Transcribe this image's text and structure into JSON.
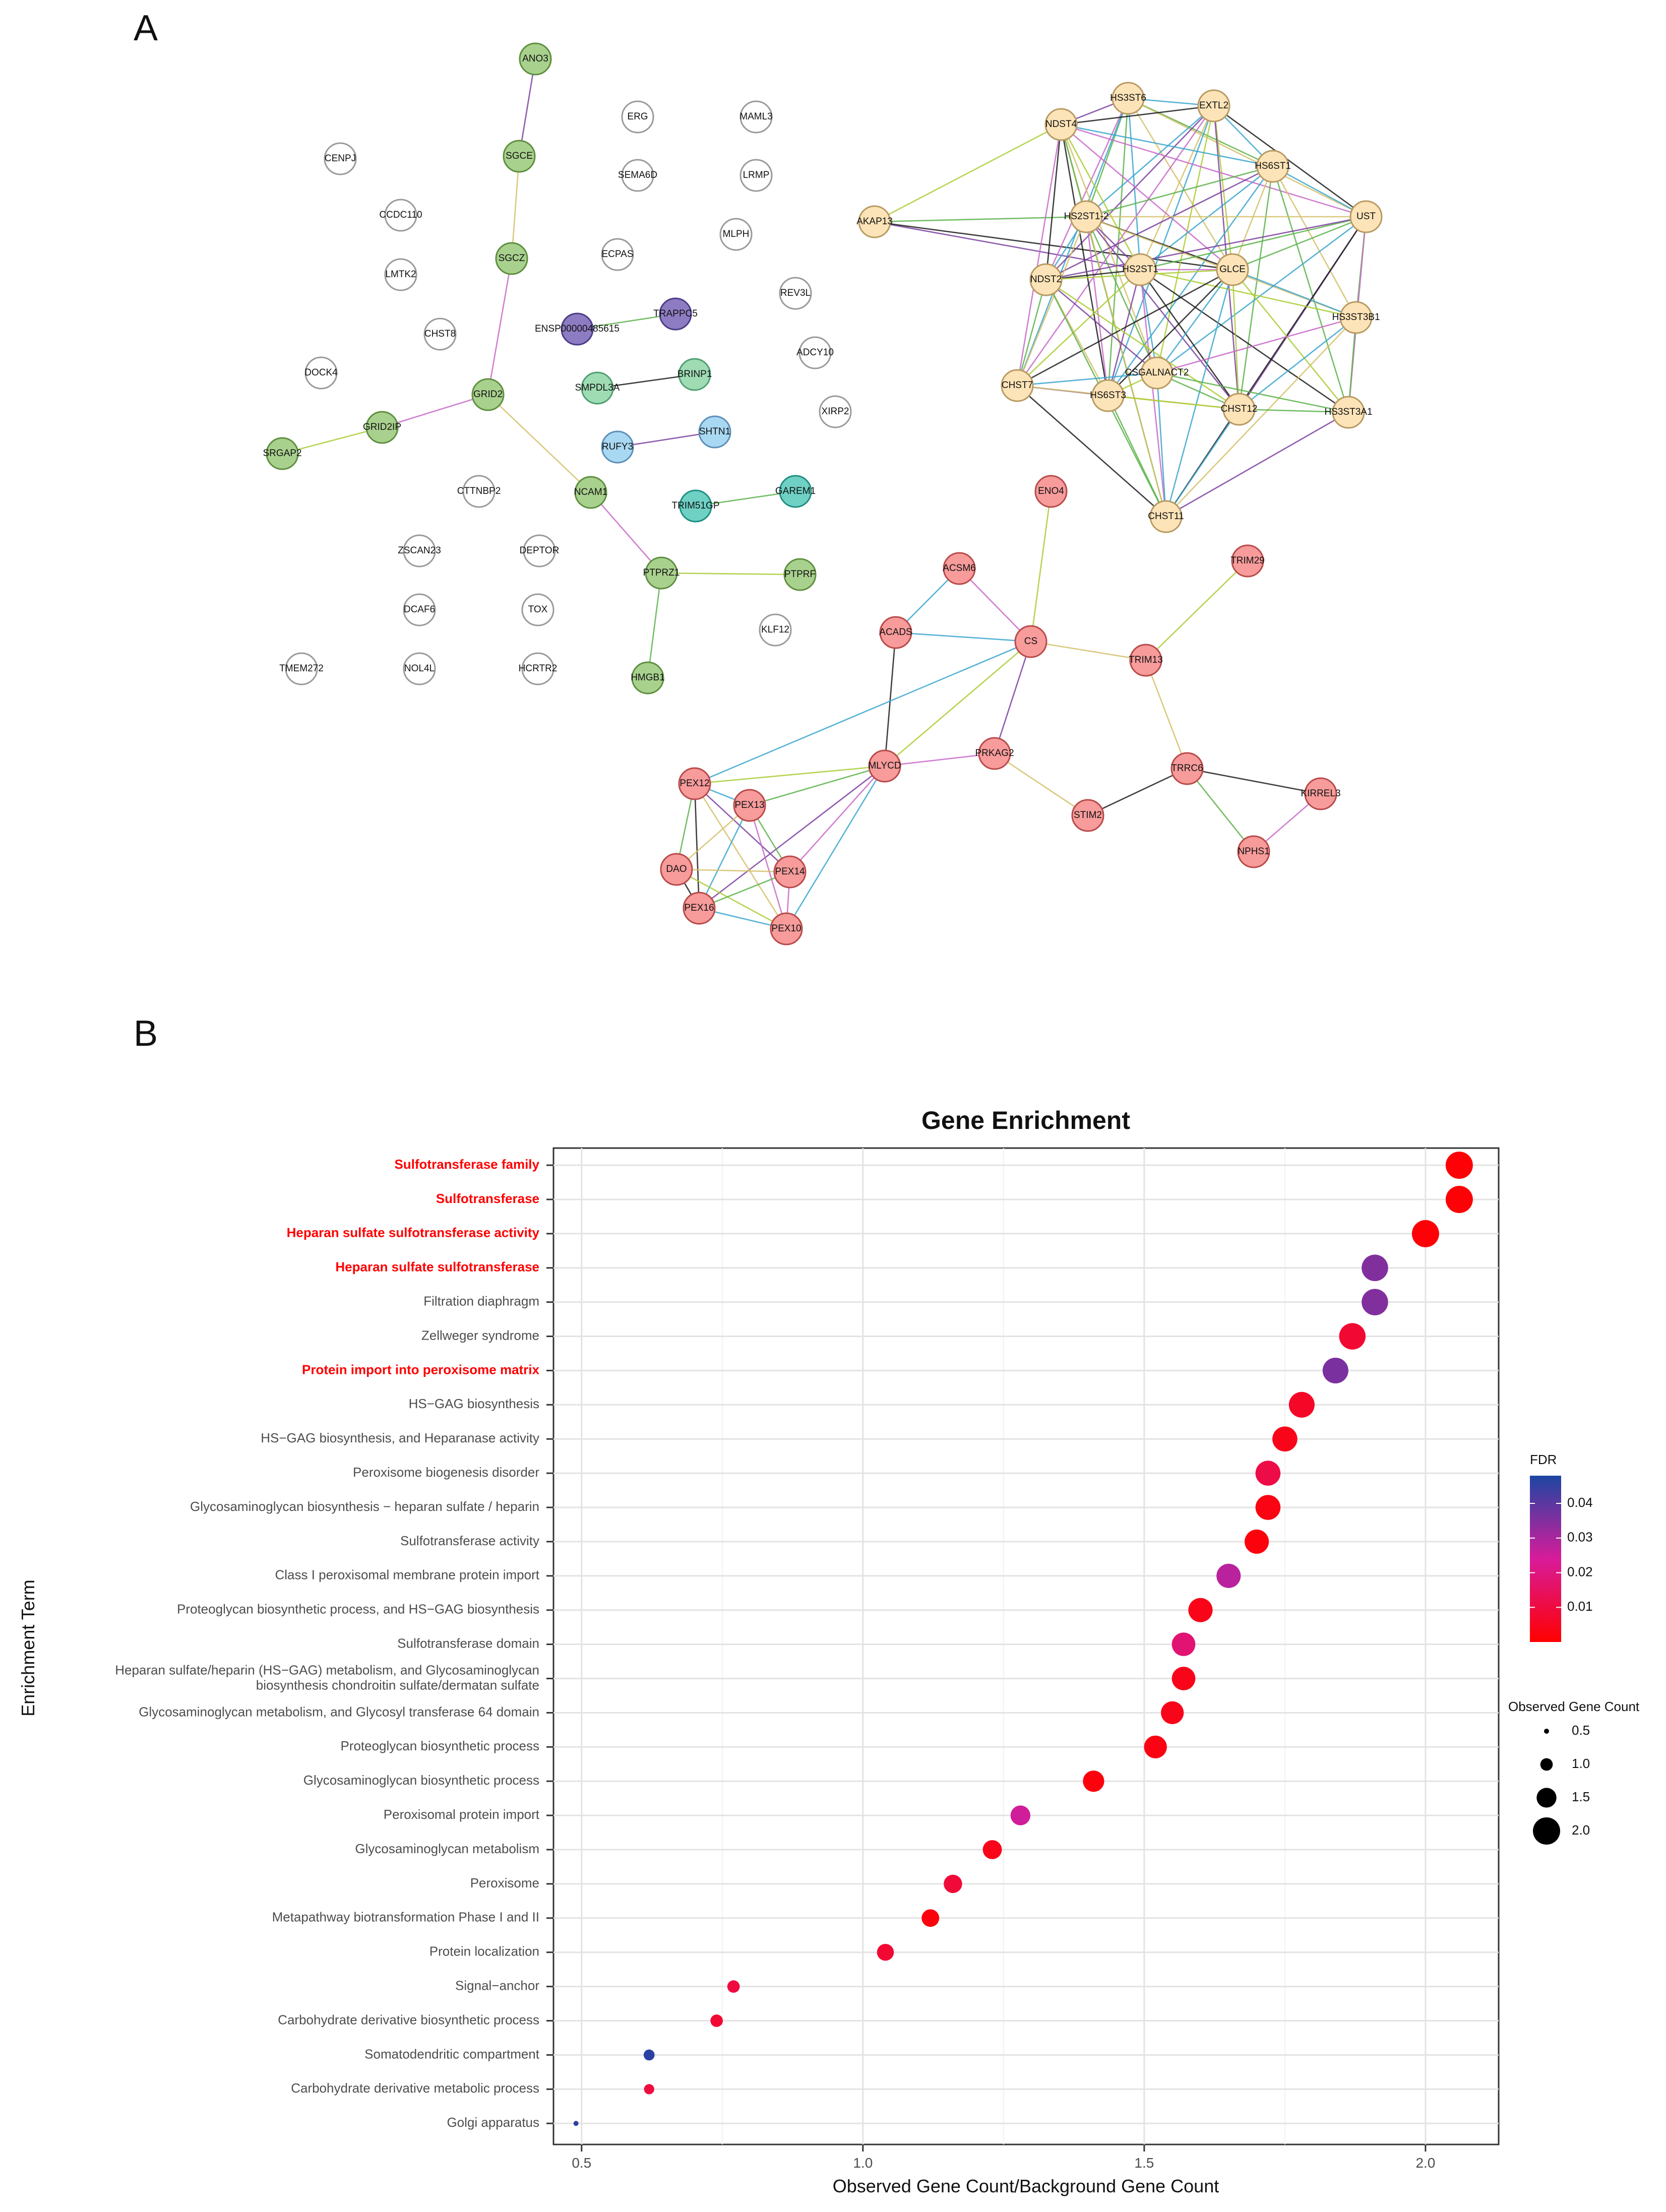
{
  "panels": {
    "a_label": "A",
    "b_label": "B"
  },
  "network": {
    "nodes": [
      {
        "id": "ANO3",
        "group": "green"
      },
      {
        "id": "SGCE",
        "group": "green"
      },
      {
        "id": "SGCZ",
        "group": "green"
      },
      {
        "id": "GRID2",
        "group": "green"
      },
      {
        "id": "GRID2IP",
        "group": "green"
      },
      {
        "id": "SRGAP2",
        "group": "green"
      },
      {
        "id": "NCAM1",
        "group": "green"
      },
      {
        "id": "PTPRZ1",
        "group": "green"
      },
      {
        "id": "PTPRF",
        "group": "green"
      },
      {
        "id": "HMGB1",
        "group": "green"
      },
      {
        "id": "ENSP00000485615",
        "group": "purple"
      },
      {
        "id": "TRAPPC5",
        "group": "purple"
      },
      {
        "id": "SMPDL3A",
        "group": "mint"
      },
      {
        "id": "BRINP1",
        "group": "mint"
      },
      {
        "id": "RUFY3",
        "group": "blue"
      },
      {
        "id": "SHTN1",
        "group": "blue"
      },
      {
        "id": "TRIM51GP",
        "group": "teal"
      },
      {
        "id": "GAREM1",
        "group": "teal"
      },
      {
        "id": "CENPJ",
        "group": "none"
      },
      {
        "id": "CCDC110",
        "group": "none"
      },
      {
        "id": "LMTK2",
        "group": "none"
      },
      {
        "id": "CHST8",
        "group": "none"
      },
      {
        "id": "DOCK4",
        "group": "none"
      },
      {
        "id": "CTTNBP2",
        "group": "none"
      },
      {
        "id": "ZSCAN23",
        "group": "none"
      },
      {
        "id": "DEPTOR",
        "group": "none"
      },
      {
        "id": "DCAF6",
        "group": "none"
      },
      {
        "id": "TOX",
        "group": "none"
      },
      {
        "id": "TMEM272",
        "group": "none"
      },
      {
        "id": "NOL4L",
        "group": "none"
      },
      {
        "id": "HCRTR2",
        "group": "none"
      },
      {
        "id": "ERG",
        "group": "none"
      },
      {
        "id": "SEMA6D",
        "group": "none"
      },
      {
        "id": "ECPAS",
        "group": "none"
      },
      {
        "id": "MAML3",
        "group": "none"
      },
      {
        "id": "LRMP",
        "group": "none"
      },
      {
        "id": "MLPH",
        "group": "none"
      },
      {
        "id": "REV3L",
        "group": "none"
      },
      {
        "id": "ADCY10",
        "group": "none"
      },
      {
        "id": "XIRP2",
        "group": "none"
      },
      {
        "id": "KLF12",
        "group": "none"
      },
      {
        "id": "HS3ST6",
        "group": "tan"
      },
      {
        "id": "EXTL2",
        "group": "tan"
      },
      {
        "id": "NDST4",
        "group": "tan"
      },
      {
        "id": "HS6ST1",
        "group": "tan"
      },
      {
        "id": "AKAP13",
        "group": "tan"
      },
      {
        "id": "HS2ST1-2",
        "group": "tan"
      },
      {
        "id": "UST",
        "group": "tan"
      },
      {
        "id": "HS2ST1",
        "group": "tan"
      },
      {
        "id": "GLCE",
        "group": "tan"
      },
      {
        "id": "NDST2",
        "group": "tan"
      },
      {
        "id": "HS3ST3B1",
        "group": "tan"
      },
      {
        "id": "CSGALNACT2",
        "group": "tan"
      },
      {
        "id": "CHST7",
        "group": "tan"
      },
      {
        "id": "HS6ST3",
        "group": "tan"
      },
      {
        "id": "CHST12",
        "group": "tan"
      },
      {
        "id": "HS3ST3A1",
        "group": "tan"
      },
      {
        "id": "CHST11",
        "group": "tan"
      },
      {
        "id": "ENO4",
        "group": "red"
      },
      {
        "id": "TRIM29",
        "group": "red"
      },
      {
        "id": "ACSM6",
        "group": "red"
      },
      {
        "id": "ACADS",
        "group": "red"
      },
      {
        "id": "CS",
        "group": "red"
      },
      {
        "id": "TRIM13",
        "group": "red"
      },
      {
        "id": "MLYCD",
        "group": "red"
      },
      {
        "id": "PRKAG2",
        "group": "red"
      },
      {
        "id": "TRRC6",
        "group": "red"
      },
      {
        "id": "PEX12",
        "group": "red"
      },
      {
        "id": "PEX13",
        "group": "red"
      },
      {
        "id": "STIM2",
        "group": "red"
      },
      {
        "id": "KIRREL3",
        "group": "red"
      },
      {
        "id": "DAO",
        "group": "red"
      },
      {
        "id": "PEX14",
        "group": "red"
      },
      {
        "id": "PEX16",
        "group": "red"
      },
      {
        "id": "PEX10",
        "group": "red"
      },
      {
        "id": "NPHS1",
        "group": "red"
      }
    ],
    "edges": [
      [
        "ANO3",
        "SGCE"
      ],
      [
        "SGCE",
        "SGCZ"
      ],
      [
        "SGCZ",
        "GRID2"
      ],
      [
        "GRID2",
        "GRID2IP"
      ],
      [
        "GRID2IP",
        "SRGAP2"
      ],
      [
        "GRID2",
        "NCAM1"
      ],
      [
        "NCAM1",
        "PTPRZ1"
      ],
      [
        "PTPRZ1",
        "PTPRF"
      ],
      [
        "PTPRZ1",
        "HMGB1"
      ],
      [
        "ENSP00000485615",
        "TRAPPC5"
      ],
      [
        "SMPDL3A",
        "BRINP1"
      ],
      [
        "RUFY3",
        "SHTN1"
      ],
      [
        "TRIM51GP",
        "GAREM1"
      ],
      [
        "AKAP13",
        "HS2ST1-2"
      ],
      [
        "AKAP13",
        "NDST4"
      ],
      [
        "AKAP13",
        "HS2ST1"
      ],
      [
        "AKAP13",
        "GLCE"
      ],
      [
        "HS3ST6",
        "EXTL2"
      ],
      [
        "HS3ST6",
        "NDST4"
      ],
      [
        "HS3ST6",
        "HS6ST1"
      ],
      [
        "HS3ST6",
        "HS2ST1-2"
      ],
      [
        "HS3ST6",
        "HS2ST1"
      ],
      [
        "HS3ST6",
        "GLCE"
      ],
      [
        "HS3ST6",
        "NDST2"
      ],
      [
        "HS3ST6",
        "CHST7"
      ],
      [
        "HS3ST6",
        "UST"
      ],
      [
        "HS3ST6",
        "HS6ST3"
      ],
      [
        "EXTL2",
        "NDST4"
      ],
      [
        "EXTL2",
        "HS6ST1"
      ],
      [
        "EXTL2",
        "HS2ST1-2"
      ],
      [
        "EXTL2",
        "HS2ST1"
      ],
      [
        "EXTL2",
        "GLCE"
      ],
      [
        "EXTL2",
        "NDST2"
      ],
      [
        "EXTL2",
        "UST"
      ],
      [
        "EXTL2",
        "CSGALNACT2"
      ],
      [
        "EXTL2",
        "HS6ST3"
      ],
      [
        "EXTL2",
        "CHST12"
      ],
      [
        "EXTL2",
        "CHST7"
      ],
      [
        "NDST4",
        "HS2ST1-2"
      ],
      [
        "NDST4",
        "HS2ST1"
      ],
      [
        "NDST4",
        "GLCE"
      ],
      [
        "NDST4",
        "NDST2"
      ],
      [
        "NDST4",
        "HS6ST1"
      ],
      [
        "NDST4",
        "UST"
      ],
      [
        "NDST4",
        "CHST7"
      ],
      [
        "NDST4",
        "HS6ST3"
      ],
      [
        "NDST4",
        "CSGALNACT2"
      ],
      [
        "NDST4",
        "CHST11"
      ],
      [
        "HS6ST1",
        "HS2ST1-2"
      ],
      [
        "HS6ST1",
        "HS2ST1"
      ],
      [
        "HS6ST1",
        "GLCE"
      ],
      [
        "HS6ST1",
        "UST"
      ],
      [
        "HS6ST1",
        "HS3ST3B1"
      ],
      [
        "HS6ST1",
        "NDST2"
      ],
      [
        "HS6ST1",
        "CHST12"
      ],
      [
        "HS6ST1",
        "HS3ST3A1"
      ],
      [
        "HS6ST1",
        "HS6ST3"
      ],
      [
        "HS2ST1-2",
        "HS2ST1"
      ],
      [
        "HS2ST1-2",
        "GLCE"
      ],
      [
        "HS2ST1-2",
        "NDST2"
      ],
      [
        "HS2ST1-2",
        "UST"
      ],
      [
        "HS2ST1-2",
        "CHST7"
      ],
      [
        "HS2ST1-2",
        "HS6ST3"
      ],
      [
        "HS2ST1-2",
        "CSGALNACT2"
      ],
      [
        "HS2ST1-2",
        "CHST12"
      ],
      [
        "HS2ST1-2",
        "CHST11"
      ],
      [
        "HS2ST1-2",
        "HS3ST3B1"
      ],
      [
        "UST",
        "GLCE"
      ],
      [
        "UST",
        "HS2ST1"
      ],
      [
        "UST",
        "HS3ST3B1"
      ],
      [
        "UST",
        "HS3ST3A1"
      ],
      [
        "UST",
        "CHST12"
      ],
      [
        "UST",
        "CSGALNACT2"
      ],
      [
        "UST",
        "CHST11"
      ],
      [
        "UST",
        "NDST2"
      ],
      [
        "HS2ST1",
        "GLCE"
      ],
      [
        "HS2ST1",
        "NDST2"
      ],
      [
        "HS2ST1",
        "CHST7"
      ],
      [
        "HS2ST1",
        "HS6ST3"
      ],
      [
        "HS2ST1",
        "CSGALNACT2"
      ],
      [
        "HS2ST1",
        "CHST12"
      ],
      [
        "HS2ST1",
        "HS3ST3A1"
      ],
      [
        "HS2ST1",
        "HS3ST3B1"
      ],
      [
        "HS2ST1",
        "CHST11"
      ],
      [
        "GLCE",
        "NDST2"
      ],
      [
        "GLCE",
        "HS3ST3B1"
      ],
      [
        "GLCE",
        "CSGALNACT2"
      ],
      [
        "GLCE",
        "HS6ST3"
      ],
      [
        "GLCE",
        "CHST12"
      ],
      [
        "GLCE",
        "HS3ST3A1"
      ],
      [
        "GLCE",
        "CHST7"
      ],
      [
        "GLCE",
        "CHST11"
      ],
      [
        "NDST2",
        "CHST7"
      ],
      [
        "NDST2",
        "HS6ST3"
      ],
      [
        "NDST2",
        "CSGALNACT2"
      ],
      [
        "NDST2",
        "CHST12"
      ],
      [
        "NDST2",
        "CHST11"
      ],
      [
        "HS3ST3B1",
        "HS3ST3A1"
      ],
      [
        "HS3ST3B1",
        "CHST12"
      ],
      [
        "HS3ST3B1",
        "CSGALNACT2"
      ],
      [
        "HS3ST3B1",
        "CHST11"
      ],
      [
        "CSGALNACT2",
        "CHST7"
      ],
      [
        "CSGALNACT2",
        "HS6ST3"
      ],
      [
        "CSGALNACT2",
        "CHST12"
      ],
      [
        "CSGALNACT2",
        "HS3ST3A1"
      ],
      [
        "CSGALNACT2",
        "CHST11"
      ],
      [
        "CHST7",
        "HS6ST3"
      ],
      [
        "CHST7",
        "CHST12"
      ],
      [
        "CHST7",
        "CHST11"
      ],
      [
        "HS6ST3",
        "CHST12"
      ],
      [
        "HS6ST3",
        "CHST11"
      ],
      [
        "CHST12",
        "HS3ST3A1"
      ],
      [
        "CHST12",
        "CHST11"
      ],
      [
        "HS3ST3A1",
        "CHST11"
      ],
      [
        "ENO4",
        "CS"
      ],
      [
        "ACSM6",
        "ACADS"
      ],
      [
        "ACSM6",
        "CS"
      ],
      [
        "ACADS",
        "CS"
      ],
      [
        "ACADS",
        "MLYCD"
      ],
      [
        "CS",
        "MLYCD"
      ],
      [
        "CS",
        "PRKAG2"
      ],
      [
        "CS",
        "TRIM13"
      ],
      [
        "CS",
        "PEX12"
      ],
      [
        "TRIM29",
        "TRIM13"
      ],
      [
        "TRIM13",
        "TRRC6"
      ],
      [
        "MLYCD",
        "PRKAG2"
      ],
      [
        "MLYCD",
        "PEX12"
      ],
      [
        "MLYCD",
        "PEX13"
      ],
      [
        "MLYCD",
        "PEX14"
      ],
      [
        "MLYCD",
        "PEX10"
      ],
      [
        "MLYCD",
        "PEX16"
      ],
      [
        "PRKAG2",
        "STIM2"
      ],
      [
        "STIM2",
        "TRRC6"
      ],
      [
        "TRRC6",
        "KIRREL3"
      ],
      [
        "TRRC6",
        "NPHS1"
      ],
      [
        "KIRREL3",
        "NPHS1"
      ],
      [
        "PEX12",
        "PEX13"
      ],
      [
        "PEX12",
        "PEX14"
      ],
      [
        "PEX12",
        "PEX10"
      ],
      [
        "PEX12",
        "PEX16"
      ],
      [
        "PEX12",
        "DAO"
      ],
      [
        "PEX13",
        "PEX14"
      ],
      [
        "PEX13",
        "PEX10"
      ],
      [
        "PEX13",
        "PEX16"
      ],
      [
        "PEX13",
        "DAO"
      ],
      [
        "DAO",
        "PEX14"
      ],
      [
        "DAO",
        "PEX16"
      ],
      [
        "DAO",
        "PEX10"
      ],
      [
        "PEX14",
        "PEX16"
      ],
      [
        "PEX14",
        "PEX10"
      ],
      [
        "PEX16",
        "PEX10"
      ]
    ]
  },
  "colors": {
    "green": "#a9d18e",
    "purple": "#8e7cc3",
    "mint": "#9fdcb4",
    "blue": "#a9d8f2",
    "teal": "#6fd0c4",
    "tan": "#fde4b8",
    "red": "#f79b9b",
    "none": "#ffffff",
    "fdr_low": "#ff0000",
    "fdr_mid": "#d81b9a",
    "fdr_high": "#1c46a3",
    "highlight": "#ff0000"
  },
  "chart_data": {
    "type": "scatter",
    "title": "Gene Enrichment",
    "xlabel": "Observed Gene Count/Background Gene Count",
    "ylabel": "Enrichment Term",
    "xlim": [
      0.45,
      2.13
    ],
    "xticks": [
      0.5,
      1.0,
      1.5,
      2.0
    ],
    "xtick_labels": [
      "0.5",
      "1.0",
      "1.5",
      "2.0"
    ],
    "legend_fdr": {
      "title": "FDR",
      "range": [
        0.0,
        0.048
      ],
      "ticks": [
        0.01,
        0.02,
        0.03,
        0.04
      ],
      "tick_labels": [
        "0.01",
        "0.02",
        "0.03",
        "0.04"
      ]
    },
    "legend_size": {
      "title": "Observed Gene Count",
      "values": [
        0.5,
        1.0,
        1.5,
        2.0
      ],
      "labels": [
        "0.5",
        "1.0",
        "1.5",
        "2.0"
      ]
    },
    "terms": [
      {
        "label": "Sulfotransferase family",
        "x": 2.06,
        "fdr": 0.001,
        "count": 2.0,
        "highlight": true
      },
      {
        "label": "Sulfotransferase",
        "x": 2.06,
        "fdr": 0.001,
        "count": 2.0,
        "highlight": true
      },
      {
        "label": "Heparan sulfate sulfotransferase activity",
        "x": 2.0,
        "fdr": 0.001,
        "count": 2.0,
        "highlight": true
      },
      {
        "label": "Heparan sulfate sulfotransferase",
        "x": 1.91,
        "fdr": 0.035,
        "count": 1.95,
        "highlight": true
      },
      {
        "label": "Filtration diaphragm",
        "x": 1.91,
        "fdr": 0.035,
        "count": 1.95,
        "highlight": false
      },
      {
        "label": "Zellweger syndrome",
        "x": 1.87,
        "fdr": 0.008,
        "count": 1.95,
        "highlight": false
      },
      {
        "label": "Protein import into peroxisome matrix",
        "x": 1.84,
        "fdr": 0.036,
        "count": 1.9,
        "highlight": true
      },
      {
        "label": "HS−GAG biosynthesis",
        "x": 1.78,
        "fdr": 0.006,
        "count": 1.9,
        "highlight": false
      },
      {
        "label": "HS−GAG biosynthesis, and Heparanase activity",
        "x": 1.75,
        "fdr": 0.004,
        "count": 1.85,
        "highlight": false
      },
      {
        "label": "Peroxisome biogenesis disorder",
        "x": 1.72,
        "fdr": 0.011,
        "count": 1.85,
        "highlight": false
      },
      {
        "label": "Glycosaminoglycan biosynthesis − heparan sulfate / heparin",
        "x": 1.72,
        "fdr": 0.003,
        "count": 1.85,
        "highlight": false
      },
      {
        "label": "Sulfotransferase activity",
        "x": 1.7,
        "fdr": 0.002,
        "count": 1.8,
        "highlight": false
      },
      {
        "label": "Class I peroxisomal membrane protein import",
        "x": 1.65,
        "fdr": 0.028,
        "count": 1.8,
        "highlight": false
      },
      {
        "label": "Proteoglycan biosynthetic process, and HS−GAG biosynthesis",
        "x": 1.6,
        "fdr": 0.004,
        "count": 1.8,
        "highlight": false
      },
      {
        "label": "Sulfotransferase domain",
        "x": 1.57,
        "fdr": 0.018,
        "count": 1.75,
        "highlight": false
      },
      {
        "label": "Heparan sulfate/heparin (HS−GAG) metabolism, and Glycosaminoglycan\nbiosynthesis chondroitin sulfate/dermatan sulfate",
        "x": 1.57,
        "fdr": 0.004,
        "count": 1.75,
        "highlight": false
      },
      {
        "label": "Glycosaminoglycan metabolism, and Glycosyl transferase 64 domain",
        "x": 1.55,
        "fdr": 0.004,
        "count": 1.7,
        "highlight": false
      },
      {
        "label": "Proteoglycan biosynthetic process",
        "x": 1.52,
        "fdr": 0.003,
        "count": 1.7,
        "highlight": false
      },
      {
        "label": "Glycosaminoglycan biosynthetic process",
        "x": 1.41,
        "fdr": 0.002,
        "count": 1.6,
        "highlight": false
      },
      {
        "label": "Peroxisomal protein import",
        "x": 1.28,
        "fdr": 0.025,
        "count": 1.5,
        "highlight": false
      },
      {
        "label": "Glycosaminoglycan metabolism",
        "x": 1.23,
        "fdr": 0.004,
        "count": 1.45,
        "highlight": false
      },
      {
        "label": "Peroxisome",
        "x": 1.16,
        "fdr": 0.009,
        "count": 1.4,
        "highlight": false
      },
      {
        "label": "Metapathway biotransformation Phase I and II",
        "x": 1.12,
        "fdr": 0.002,
        "count": 1.35,
        "highlight": false
      },
      {
        "label": "Protein localization",
        "x": 1.04,
        "fdr": 0.008,
        "count": 1.3,
        "highlight": false
      },
      {
        "label": "Signal−anchor",
        "x": 0.77,
        "fdr": 0.01,
        "count": 1.0,
        "highlight": false
      },
      {
        "label": "Carbohydrate derivative biosynthetic process",
        "x": 0.74,
        "fdr": 0.008,
        "count": 1.0,
        "highlight": false
      },
      {
        "label": "Somatodendritic compartment",
        "x": 0.62,
        "fdr": 0.046,
        "count": 0.9,
        "highlight": false
      },
      {
        "label": "Carbohydrate derivative metabolic process",
        "x": 0.62,
        "fdr": 0.01,
        "count": 0.85,
        "highlight": false
      },
      {
        "label": "Golgi apparatus",
        "x": 0.49,
        "fdr": 0.046,
        "count": 0.5,
        "highlight": false
      }
    ]
  }
}
